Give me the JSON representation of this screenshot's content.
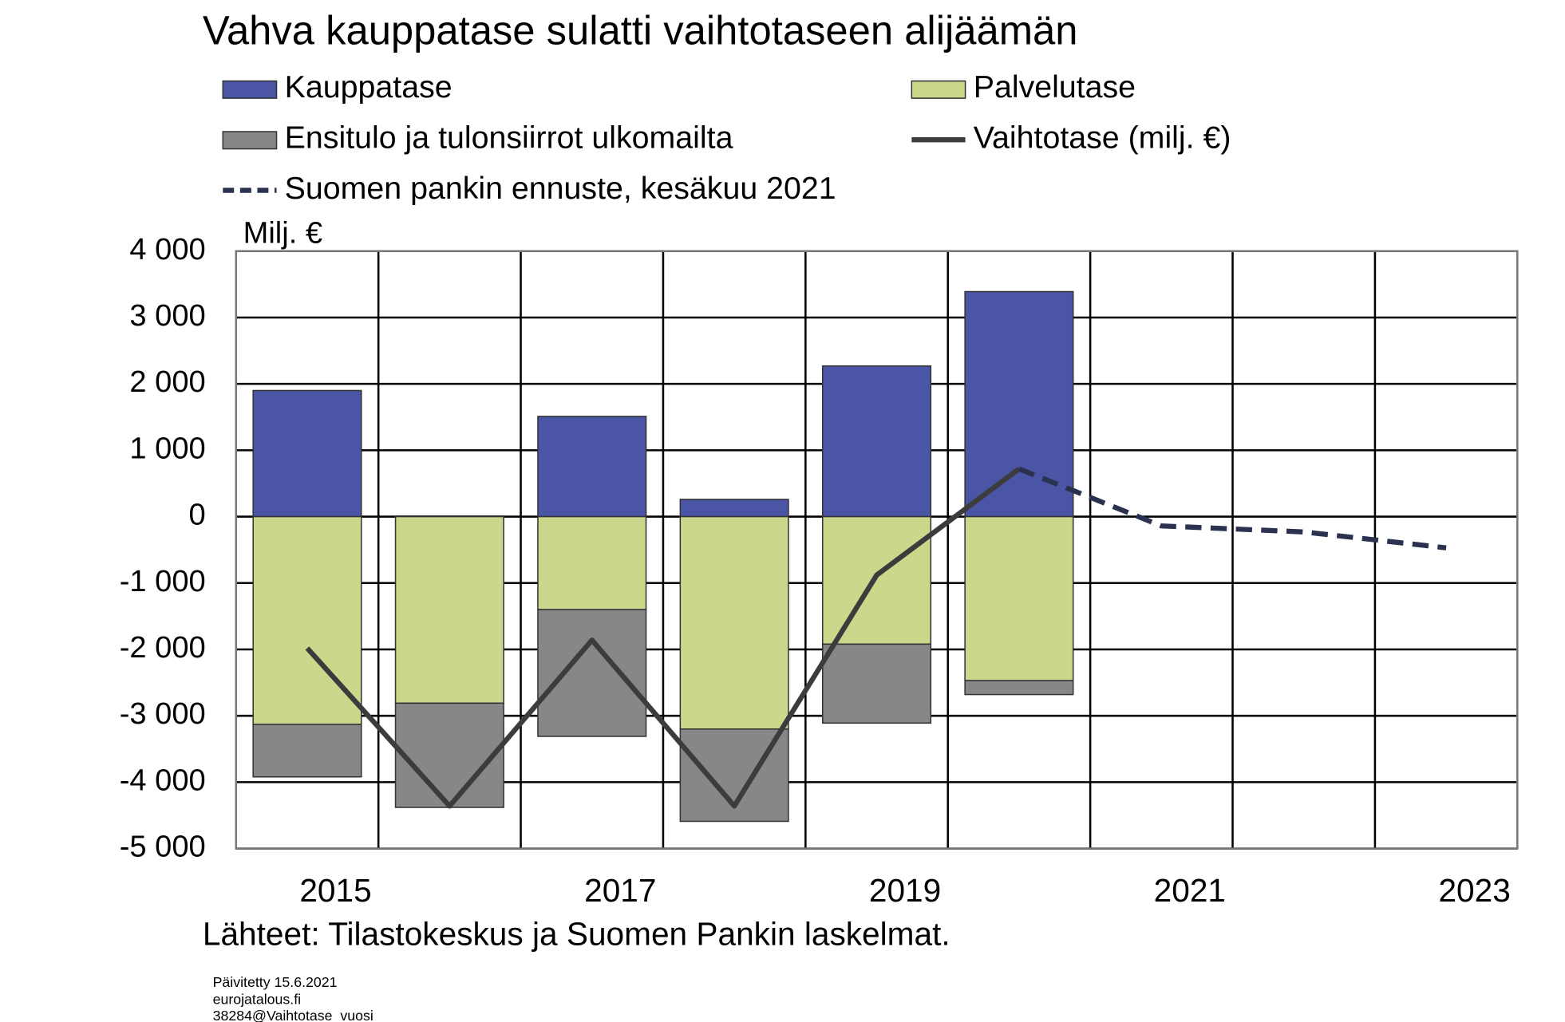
{
  "chart_data": {
    "type": "bar",
    "title": "Vahva kauppatase sulatti vaihtotaseen alijäämän",
    "y_label": "Milj. €",
    "source": "Lähteet: Tilastokeskus ja Suomen Pankin laskelmat.",
    "notes": [
      "Päivitetty 15.6.2021",
      "eurojatalous.fi",
      "38284@Vaihtotase_vuosi"
    ],
    "categories": [
      "2015",
      null,
      "2017",
      null,
      "2019",
      null,
      "2021",
      null,
      "2023"
    ],
    "series": [
      {
        "name": "Kauppatase",
        "type": "bar",
        "color": "#4b55a5",
        "values": [
          1900,
          10,
          1510,
          260,
          2270,
          3390,
          null,
          null,
          null
        ]
      },
      {
        "name": "Palvelutase",
        "type": "bar",
        "color": "#cbd78a",
        "values": [
          -3130,
          -2810,
          -1400,
          -3200,
          -1920,
          -2470,
          null,
          null,
          null
        ]
      },
      {
        "name": "Ensitulo ja tulonsiirrot ulkomailta",
        "type": "bar",
        "color": "#878787",
        "values": [
          -790,
          -1570,
          -1910,
          -1390,
          -1190,
          -210,
          null,
          null,
          null
        ]
      },
      {
        "name": "Vaihtotase (milj. €)",
        "type": "line",
        "color": "#3c3c3c",
        "values": [
          -1980,
          -4360,
          -1860,
          -4360,
          -880,
          720,
          null,
          null,
          null
        ]
      },
      {
        "name": "Suomen pankin ennuste, kesäkuu 2021",
        "type": "line",
        "dashed": true,
        "color": "#2a3250",
        "values": [
          null,
          null,
          null,
          null,
          null,
          720,
          -140,
          -230,
          -470
        ]
      }
    ],
    "ylim": [
      -5000,
      4000
    ],
    "yticks": [
      {
        "value": -5000,
        "label": "-5 000"
      },
      {
        "value": -4000,
        "label": "-4 000"
      },
      {
        "value": -3000,
        "label": "-3 000"
      },
      {
        "value": -2000,
        "label": "-2 000"
      },
      {
        "value": -1000,
        "label": "-1 000"
      },
      0,
      {
        "value": 1000,
        "label": "1 000"
      },
      {
        "value": 2000,
        "label": "2 000"
      },
      {
        "value": 3000,
        "label": "3 000"
      },
      {
        "value": 4000,
        "label": "4 000"
      }
    ],
    "grid": true
  }
}
